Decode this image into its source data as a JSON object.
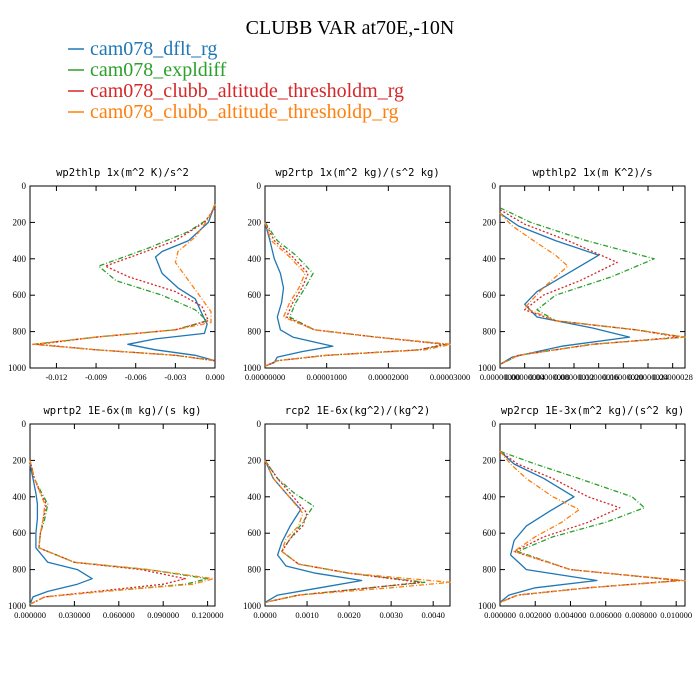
{
  "title": "CLUBB VAR at70E,-10N",
  "legend": [
    {
      "name": "cam078_dflt_rg",
      "color": "#1f77b4",
      "dash": "solid"
    },
    {
      "name": "cam078_expldiff",
      "color": "#2ca02c",
      "dash": "dashdot"
    },
    {
      "name": "cam078_clubb_altitude_thresholdm_rg",
      "color": "#d62728",
      "dash": "dot"
    },
    {
      "name": "cam078_clubb_altitude_thresholdp_rg",
      "color": "#ff7f0e",
      "dash": "dashdot"
    }
  ],
  "chart_data": [
    {
      "type": "line",
      "title": "wp2thlp  1x(m^2 K)/s^2",
      "ylim": [
        1000,
        0
      ],
      "yticks": [
        "0",
        "200",
        "400",
        "600",
        "800",
        "1000"
      ],
      "xlim": [
        -0.014,
        0.0
      ],
      "xticks": [
        -0.012,
        -0.009,
        -0.006,
        -0.003,
        0.0
      ],
      "xticklabels": [
        "-0.012",
        "-0.009",
        "-0.006",
        "-0.003",
        "0.000"
      ],
      "series": [
        {
          "name": "cam078_dflt_rg",
          "x": [
            0.0,
            -0.0005,
            -0.002,
            -0.004,
            -0.0045,
            -0.004,
            -0.0028,
            -0.0015,
            -0.001,
            -0.0006,
            -0.0008,
            -0.0045,
            -0.0066,
            -0.0045,
            -0.0015,
            0.0
          ],
          "y": [
            100,
            200,
            300,
            360,
            390,
            480,
            560,
            620,
            700,
            760,
            810,
            840,
            870,
            900,
            930,
            960
          ]
        },
        {
          "name": "cam078_expldiff",
          "x": [
            0.0,
            -0.0005,
            -0.002,
            -0.005,
            -0.0088,
            -0.0075,
            -0.004,
            -0.0015,
            -0.0006,
            -0.003,
            -0.009,
            -0.0137,
            -0.009,
            -0.003,
            0.0
          ],
          "y": [
            100,
            180,
            250,
            340,
            440,
            520,
            600,
            680,
            740,
            790,
            830,
            870,
            900,
            930,
            960
          ]
        },
        {
          "name": "cam078_clubb_altitude_thresholdm_rg",
          "x": [
            0.0,
            -0.0008,
            -0.003,
            -0.006,
            -0.0083,
            -0.0065,
            -0.003,
            -0.001,
            -0.0005,
            -0.003,
            -0.009,
            -0.0134,
            -0.009,
            -0.003,
            0.0
          ],
          "y": [
            120,
            200,
            300,
            380,
            440,
            500,
            580,
            660,
            740,
            790,
            830,
            870,
            900,
            930,
            960
          ]
        },
        {
          "name": "cam078_clubb_altitude_thresholdp_rg",
          "x": [
            0.0,
            -0.0005,
            -0.0015,
            -0.0028,
            -0.003,
            -0.002,
            -0.001,
            -0.0003,
            -0.0003,
            -0.003,
            -0.009,
            -0.0138,
            -0.009,
            -0.003,
            0.0
          ],
          "y": [
            100,
            180,
            280,
            360,
            420,
            520,
            620,
            690,
            750,
            790,
            830,
            870,
            900,
            930,
            960
          ]
        }
      ]
    },
    {
      "type": "line",
      "title": "wp2rtp  1x(m^2 kg)/(s^2 kg)",
      "ylim": [
        1000,
        0
      ],
      "yticks": [
        "0",
        "200",
        "400",
        "600",
        "800",
        "1000"
      ],
      "xlim": [
        0.0,
        3e-05
      ],
      "xticks": [
        0.0,
        1e-05,
        2e-05,
        3e-05
      ],
      "xticklabels": [
        "0.00000000",
        "0.00001000",
        "0.00002000",
        "0.00003000"
      ],
      "series": [
        {
          "name": "cam078_dflt_rg",
          "x": [
            0.0,
            8e-07,
            1.5e-06,
            2.5e-06,
            3e-06,
            2.7e-06,
            2e-06,
            2.5e-06,
            4.5e-06,
            1.1e-05,
            6e-06,
            2e-06,
            1.5e-06,
            0.0
          ],
          "y": [
            200,
            300,
            400,
            480,
            560,
            640,
            720,
            790,
            830,
            880,
            910,
            940,
            970,
            990
          ]
        },
        {
          "name": "cam078_expldiff",
          "x": [
            0.0,
            2e-06,
            5e-06,
            7.8e-06,
            6.5e-06,
            5e-06,
            4e-06,
            8e-06,
            1.8e-05,
            2.95e-05,
            2.5e-05,
            1e-05,
            2e-06,
            0.0
          ],
          "y": [
            200,
            300,
            380,
            480,
            560,
            640,
            720,
            790,
            830,
            870,
            900,
            930,
            960,
            990
          ]
        },
        {
          "name": "cam078_clubb_altitude_thresholdm_rg",
          "x": [
            0.0,
            1.5e-06,
            4.5e-06,
            7e-06,
            6e-06,
            4.5e-06,
            3.5e-06,
            8e-06,
            1.8e-05,
            2.9e-05,
            2.5e-05,
            1e-05,
            2e-06,
            0.0
          ],
          "y": [
            200,
            300,
            390,
            480,
            560,
            640,
            720,
            790,
            830,
            870,
            900,
            930,
            960,
            990
          ]
        },
        {
          "name": "cam078_clubb_altitude_thresholdp_rg",
          "x": [
            0.0,
            1e-06,
            4e-06,
            6.5e-06,
            5.5e-06,
            4e-06,
            3e-06,
            8e-06,
            1.8e-05,
            3.02e-05,
            2.6e-05,
            1e-05,
            2e-06,
            0.0
          ],
          "y": [
            200,
            300,
            390,
            480,
            560,
            640,
            720,
            790,
            830,
            870,
            900,
            930,
            960,
            990
          ]
        }
      ]
    },
    {
      "type": "line",
      "title": "wpthlp2  1x(m K^2)/s",
      "ylim": [
        1000,
        0
      ],
      "yticks": [
        "0",
        "200",
        "400",
        "600",
        "800",
        "1000"
      ],
      "xlim": [
        0.0,
        3e-07
      ],
      "xticklabels": [
        "0.00000000",
        "0.00000004",
        "0.00000008",
        "0.00000012",
        "0.00000016",
        "0.00000020",
        "0.00000024",
        "0.00000028"
      ],
      "series": [
        {
          "name": "cam078_dflt_rg",
          "x": [
            0.0,
            3e-08,
            9e-08,
            1.6e-07,
            1.1e-07,
            6e-08,
            4e-08,
            6e-08,
            1.5e-07,
            2.1e-07,
            1e-07,
            2e-08,
            0.0
          ],
          "y": [
            150,
            220,
            300,
            380,
            480,
            580,
            650,
            720,
            780,
            830,
            880,
            940,
            980
          ]
        },
        {
          "name": "cam078_expldiff",
          "x": [
            0.0,
            5e-08,
            1.4e-07,
            2.5e-07,
            1.8e-07,
            9e-08,
            6e-08,
            9e-08,
            2.2e-07,
            3e-07,
            1.5e-07,
            3e-08,
            0.0
          ],
          "y": [
            120,
            200,
            300,
            400,
            500,
            600,
            680,
            740,
            790,
            830,
            870,
            930,
            980
          ]
        },
        {
          "name": "cam078_clubb_altitude_thresholdm_rg",
          "x": [
            0.0,
            4e-08,
            1.1e-07,
            1.9e-07,
            1.3e-07,
            7e-08,
            4e-08,
            9e-08,
            2.2e-07,
            2.9e-07,
            1.5e-07,
            3e-08,
            0.0
          ],
          "y": [
            130,
            210,
            300,
            420,
            520,
            600,
            680,
            740,
            790,
            830,
            870,
            930,
            980
          ]
        },
        {
          "name": "cam078_clubb_altitude_thresholdp_rg",
          "x": [
            0.0,
            2e-08,
            5e-08,
            9e-08,
            1.1e-07,
            7e-08,
            4e-08,
            9e-08,
            2.2e-07,
            3e-07,
            1.5e-07,
            3e-08,
            0.0
          ],
          "y": [
            150,
            220,
            290,
            380,
            440,
            560,
            670,
            740,
            790,
            830,
            870,
            930,
            980
          ]
        }
      ]
    },
    {
      "type": "line",
      "title": "wprtp2  1E-6x(m kg)/(s kg)",
      "ylim": [
        1000,
        0
      ],
      "yticks": [
        "0",
        "200",
        "400",
        "600",
        "800",
        "1000"
      ],
      "xlim": [
        0.0,
        0.125
      ],
      "xticks": [
        0.0,
        0.03,
        0.06,
        0.09,
        0.12
      ],
      "xticklabels": [
        "0.000000",
        "0.030000",
        "0.060000",
        "0.090000",
        "0.120000"
      ],
      "series": [
        {
          "name": "cam078_dflt_rg",
          "x": [
            0.0,
            0.002,
            0.004,
            0.005,
            0.005,
            0.004,
            0.004,
            0.012,
            0.032,
            0.042,
            0.032,
            0.012,
            0.002,
            0.0
          ],
          "y": [
            220,
            300,
            380,
            440,
            520,
            600,
            680,
            760,
            800,
            850,
            880,
            920,
            950,
            990
          ]
        },
        {
          "name": "cam078_expldiff",
          "x": [
            0.0,
            0.003,
            0.008,
            0.012,
            0.01,
            0.007,
            0.006,
            0.03,
            0.08,
            0.12,
            0.105,
            0.05,
            0.01,
            0.0
          ],
          "y": [
            200,
            300,
            380,
            440,
            520,
            600,
            680,
            760,
            800,
            850,
            880,
            920,
            950,
            990
          ]
        },
        {
          "name": "cam078_clubb_altitude_thresholdm_rg",
          "x": [
            0.0,
            0.003,
            0.007,
            0.011,
            0.009,
            0.007,
            0.006,
            0.03,
            0.075,
            0.105,
            0.09,
            0.045,
            0.01,
            0.0
          ],
          "y": [
            200,
            300,
            380,
            440,
            520,
            600,
            680,
            760,
            800,
            850,
            880,
            920,
            950,
            990
          ]
        },
        {
          "name": "cam078_clubb_altitude_thresholdp_rg",
          "x": [
            0.0,
            0.003,
            0.007,
            0.01,
            0.009,
            0.007,
            0.006,
            0.03,
            0.08,
            0.124,
            0.11,
            0.05,
            0.01,
            0.0
          ],
          "y": [
            200,
            300,
            380,
            440,
            520,
            600,
            680,
            760,
            800,
            850,
            880,
            920,
            950,
            990
          ]
        }
      ]
    },
    {
      "type": "line",
      "title": "rcp2  1E-6x(kg^2)/(kg^2)",
      "ylim": [
        1000,
        0
      ],
      "yticks": [
        "0",
        "200",
        "400",
        "600",
        "800",
        "1000"
      ],
      "xlim": [
        0.0,
        0.0044
      ],
      "xticks": [
        0.0,
        0.001,
        0.002,
        0.003,
        0.004
      ],
      "xticklabels": [
        "0.0000",
        "0.0010",
        "0.0020",
        "0.0030",
        "0.0040"
      ],
      "series": [
        {
          "name": "cam078_dflt_rg",
          "x": [
            0.0,
            0.0002,
            0.0005,
            0.00085,
            0.0006,
            0.0004,
            0.0003,
            0.0005,
            0.0012,
            0.0023,
            0.0013,
            0.0003,
            0.0
          ],
          "y": [
            200,
            300,
            380,
            470,
            560,
            650,
            720,
            780,
            820,
            860,
            900,
            940,
            980
          ]
        },
        {
          "name": "cam078_expldiff",
          "x": [
            0.0,
            0.0003,
            0.0007,
            0.00115,
            0.0009,
            0.0006,
            0.0004,
            0.0008,
            0.002,
            0.0038,
            0.0025,
            0.0008,
            0.0
          ],
          "y": [
            200,
            300,
            380,
            450,
            540,
            630,
            700,
            770,
            820,
            870,
            900,
            940,
            980
          ]
        },
        {
          "name": "cam078_clubb_altitude_thresholdm_rg",
          "x": [
            0.0,
            0.0003,
            0.0006,
            0.001,
            0.0009,
            0.0006,
            0.0004,
            0.0008,
            0.002,
            0.0037,
            0.0025,
            0.0008,
            0.0
          ],
          "y": [
            200,
            300,
            380,
            490,
            560,
            630,
            700,
            770,
            820,
            870,
            900,
            940,
            980
          ]
        },
        {
          "name": "cam078_clubb_altitude_thresholdp_rg",
          "x": [
            0.0,
            0.0002,
            0.0005,
            0.0009,
            0.0008,
            0.0005,
            0.0004,
            0.0008,
            0.002,
            0.0044,
            0.003,
            0.0008,
            0.0
          ],
          "y": [
            200,
            300,
            380,
            490,
            560,
            630,
            700,
            770,
            820,
            870,
            900,
            940,
            980
          ]
        }
      ]
    },
    {
      "type": "line",
      "title": "wp2rcp  1E-3x(m^2 kg)/(s^2 kg)",
      "ylim": [
        1000,
        0
      ],
      "yticks": [
        "0",
        "200",
        "400",
        "600",
        "800",
        "1000"
      ],
      "xlim": [
        0.0,
        0.0105
      ],
      "xticks": [
        0.0,
        0.002,
        0.004,
        0.006,
        0.008,
        0.01
      ],
      "xticklabels": [
        "0.000000",
        "0.002000",
        "0.004000",
        "0.006000",
        "0.008000",
        "0.010000"
      ],
      "series": [
        {
          "name": "cam078_dflt_rg",
          "x": [
            0.0,
            0.0008,
            0.0025,
            0.0042,
            0.0028,
            0.0015,
            0.0008,
            0.0006,
            0.0015,
            0.0055,
            0.002,
            0.0005,
            0.0
          ],
          "y": [
            150,
            220,
            300,
            400,
            480,
            560,
            640,
            720,
            800,
            860,
            900,
            940,
            980
          ]
        },
        {
          "name": "cam078_expldiff",
          "x": [
            0.0,
            0.002,
            0.0045,
            0.0075,
            0.0082,
            0.006,
            0.003,
            0.001,
            0.004,
            0.0102,
            0.005,
            0.001,
            0.0
          ],
          "y": [
            150,
            220,
            300,
            400,
            460,
            540,
            620,
            700,
            800,
            860,
            900,
            940,
            980
          ]
        },
        {
          "name": "cam078_clubb_altitude_thresholdm_rg",
          "x": [
            0.0,
            0.001,
            0.003,
            0.005,
            0.0068,
            0.005,
            0.0025,
            0.0008,
            0.004,
            0.0102,
            0.005,
            0.001,
            0.0
          ],
          "y": [
            150,
            220,
            300,
            400,
            460,
            540,
            620,
            700,
            800,
            860,
            900,
            940,
            980
          ]
        },
        {
          "name": "cam078_clubb_altitude_thresholdp_rg",
          "x": [
            0.0,
            0.0006,
            0.0015,
            0.003,
            0.0045,
            0.0035,
            0.002,
            0.0008,
            0.004,
            0.0105,
            0.005,
            0.001,
            0.0
          ],
          "y": [
            150,
            220,
            300,
            400,
            470,
            540,
            620,
            700,
            800,
            860,
            900,
            940,
            980
          ]
        }
      ]
    }
  ]
}
